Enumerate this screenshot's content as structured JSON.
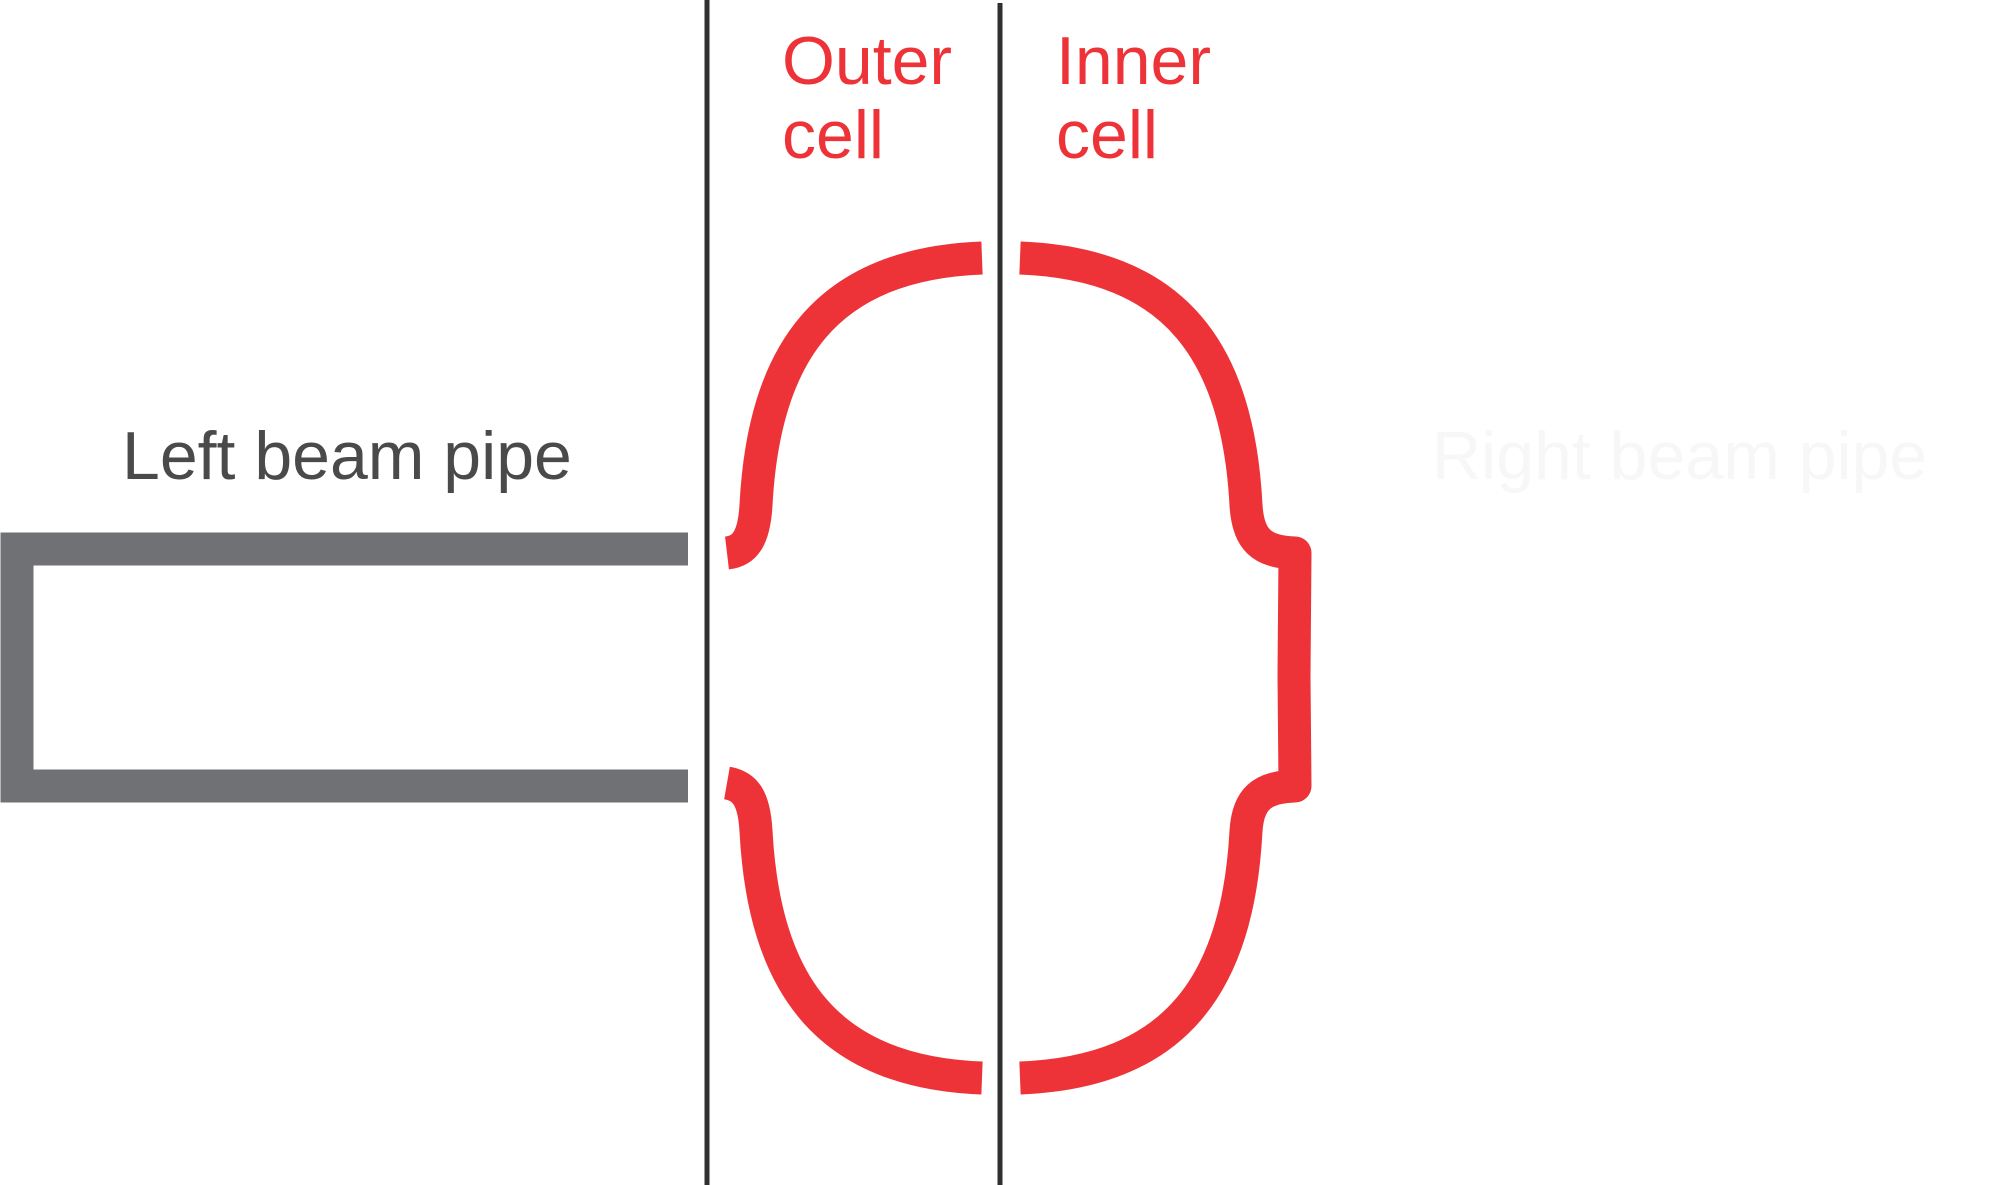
{
  "labels": {
    "left_beam_pipe": "Left beam pipe",
    "outer_cell_line1": "Outer",
    "outer_cell_line2": "cell",
    "inner_cell_line1": "Inner",
    "inner_cell_line2": "cell",
    "right_beam_pipe": "Right beam pipe"
  },
  "colors": {
    "cavity": "#ee3338",
    "beam_pipe": "#707174",
    "dividers": "#2f2f2f",
    "label_dark": "#4a4a4a",
    "label_red": "#ee3338",
    "label_faint": "#f7f7f7"
  }
}
